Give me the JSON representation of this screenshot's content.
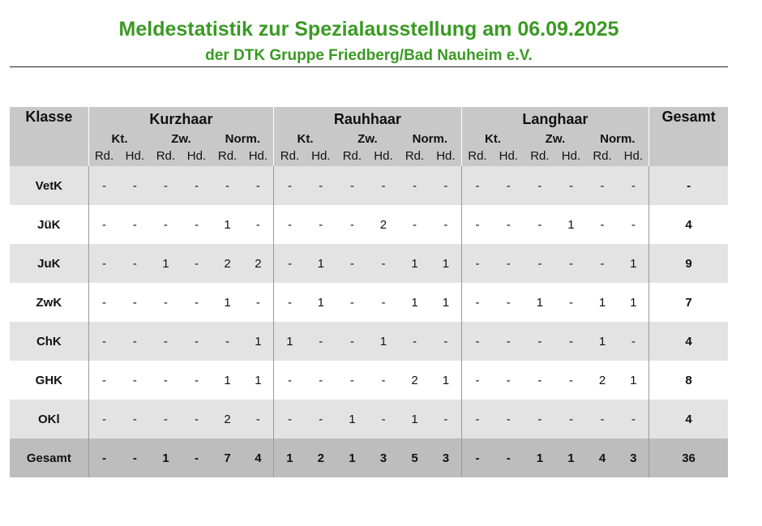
{
  "title": {
    "line1": "Meldestatistik zur Spezialausstellung am 06.09.2025",
    "line2": "der DTK Gruppe Friedberg/Bad Nauheim e.V."
  },
  "table": {
    "col_klasse": "Klasse",
    "col_gesamt": "Gesamt",
    "groups": [
      "Kurzhaar",
      "Rauhhaar",
      "Langhaar"
    ],
    "subgroups": [
      "Kt.",
      "Zw.",
      "Norm."
    ],
    "sexes": [
      "Rd.",
      "Hd."
    ],
    "rows": [
      {
        "label": "VetK",
        "cells": [
          "-",
          "-",
          "-",
          "-",
          "-",
          "-",
          "-",
          "-",
          "-",
          "-",
          "-",
          "-",
          "-",
          "-",
          "-",
          "-",
          "-",
          "-"
        ],
        "total": "-"
      },
      {
        "label": "JüK",
        "cells": [
          "-",
          "-",
          "-",
          "-",
          "1",
          "-",
          "-",
          "-",
          "-",
          "2",
          "-",
          "-",
          "-",
          "-",
          "-",
          "1",
          "-",
          "-"
        ],
        "total": "4"
      },
      {
        "label": "JuK",
        "cells": [
          "-",
          "-",
          "1",
          "-",
          "2",
          "2",
          "-",
          "1",
          "-",
          "-",
          "1",
          "1",
          "-",
          "-",
          "-",
          "-",
          "-",
          "1"
        ],
        "total": "9"
      },
      {
        "label": "ZwK",
        "cells": [
          "-",
          "-",
          "-",
          "-",
          "1",
          "-",
          "-",
          "1",
          "-",
          "-",
          "1",
          "1",
          "-",
          "-",
          "1",
          "-",
          "1",
          "1"
        ],
        "total": "7"
      },
      {
        "label": "ChK",
        "cells": [
          "-",
          "-",
          "-",
          "-",
          "-",
          "1",
          "1",
          "-",
          "-",
          "1",
          "-",
          "-",
          "-",
          "-",
          "-",
          "-",
          "1",
          "-"
        ],
        "total": "4"
      },
      {
        "label": "GHK",
        "cells": [
          "-",
          "-",
          "-",
          "-",
          "1",
          "1",
          "-",
          "-",
          "-",
          "-",
          "2",
          "1",
          "-",
          "-",
          "-",
          "-",
          "2",
          "1"
        ],
        "total": "8"
      },
      {
        "label": "OKl",
        "cells": [
          "-",
          "-",
          "-",
          "-",
          "2",
          "-",
          "-",
          "-",
          "1",
          "-",
          "1",
          "-",
          "-",
          "-",
          "-",
          "-",
          "-",
          "-"
        ],
        "total": "4"
      }
    ],
    "total_row": {
      "label": "Gesamt",
      "cells": [
        "-",
        "-",
        "1",
        "-",
        "7",
        "4",
        "1",
        "2",
        "1",
        "3",
        "5",
        "3",
        "-",
        "-",
        "1",
        "1",
        "4",
        "3"
      ],
      "total": "36"
    }
  }
}
